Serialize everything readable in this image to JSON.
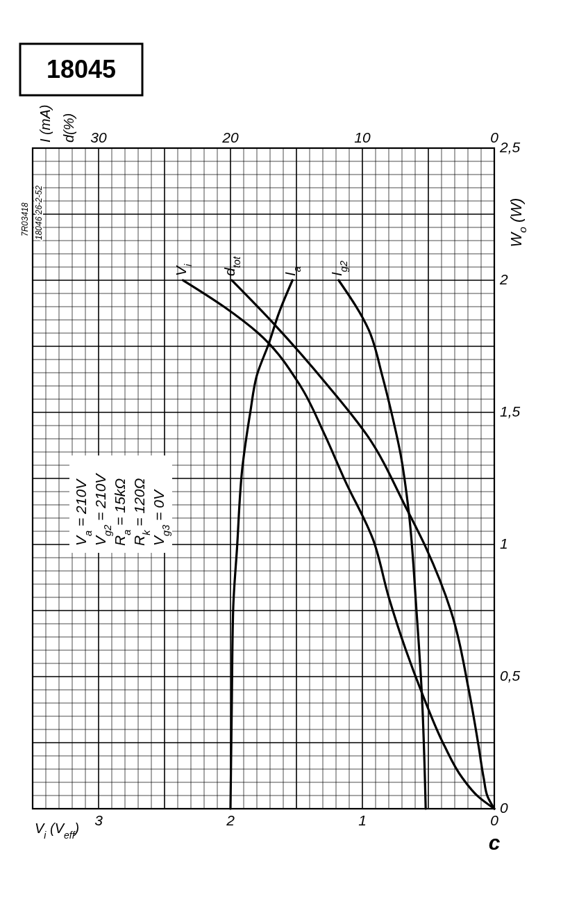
{
  "chart_data": {
    "type": "line",
    "xlabel": "V$_{i}$ (V$_{eff}$)",
    "x2label": "I (mA)",
    "ylabel": "W$_{o}$ (W)",
    "xlim": [
      3.5,
      0
    ],
    "xticks": [
      3,
      2,
      1,
      0
    ],
    "x2lim": [
      35,
      0
    ],
    "x2ticks": [
      30,
      20,
      10,
      0
    ],
    "ylim": [
      0,
      2.5
    ],
    "yticks": [
      0,
      {
        "value": 0.5,
        "label": "0,5"
      },
      1,
      {
        "value": 1.5,
        "label": "1,5"
      },
      2,
      {
        "value": 2.5,
        "label": "2,5"
      }
    ],
    "grid": true,
    "series": [
      {
        "name": "V$_{i}$",
        "color": "#000000",
        "x": [
          0,
          0.12,
          0.24,
          0.38,
          0.55,
          0.67,
          0.8,
          0.92,
          1.13,
          1.29,
          1.47,
          1.79,
          2.05,
          2.36
        ],
        "values": [
          0,
          0.045,
          0.115,
          0.24,
          0.44,
          0.6,
          0.8,
          1.02,
          1.24,
          1.42,
          1.6,
          1.8,
          1.9,
          2.0
        ]
      },
      {
        "name": "d$_{tot}$",
        "color": "#000000",
        "axis": "x2",
        "x": [
          0,
          0.5,
          0.8,
          1.2,
          1.9,
          3.3,
          5.2,
          6.6,
          9.6,
          12.6,
          16.8,
          19.9
        ],
        "values": [
          0,
          0.045,
          0.115,
          0.24,
          0.44,
          0.75,
          0.99,
          1.13,
          1.41,
          1.6,
          1.84,
          2.0
        ]
      },
      {
        "name": "I$_{a}$",
        "color": "#000000",
        "axis": "x2",
        "x": [
          20,
          19.9,
          19.8,
          19.5,
          19.1,
          18.5,
          18.0,
          17.1,
          16.3,
          15.3
        ],
        "values": [
          0,
          0.4,
          0.75,
          0.99,
          1.29,
          1.5,
          1.64,
          1.76,
          1.88,
          2.0
        ]
      },
      {
        "name": "I$_{g2}$",
        "color": "#000000",
        "axis": "x2",
        "x": [
          5.2,
          5.5,
          5.9,
          6.5,
          7.1,
          7.8,
          8.5,
          9.5,
          11.8
        ],
        "values": [
          0,
          0.44,
          0.75,
          1.13,
          1.34,
          1.5,
          1.64,
          1.81,
          2.0
        ]
      }
    ],
    "annotations": [
      "18045",
      "7R03418",
      "18046 26-2-52",
      "V$_{a}$ = 210V",
      "V$_{g2}$ = 210V",
      "R$_{a}$ = 15kΩ",
      "R$_{k}$ = 120Ω",
      "V$_{g3}$ = 0V",
      "c",
      "d(%)"
    ]
  }
}
